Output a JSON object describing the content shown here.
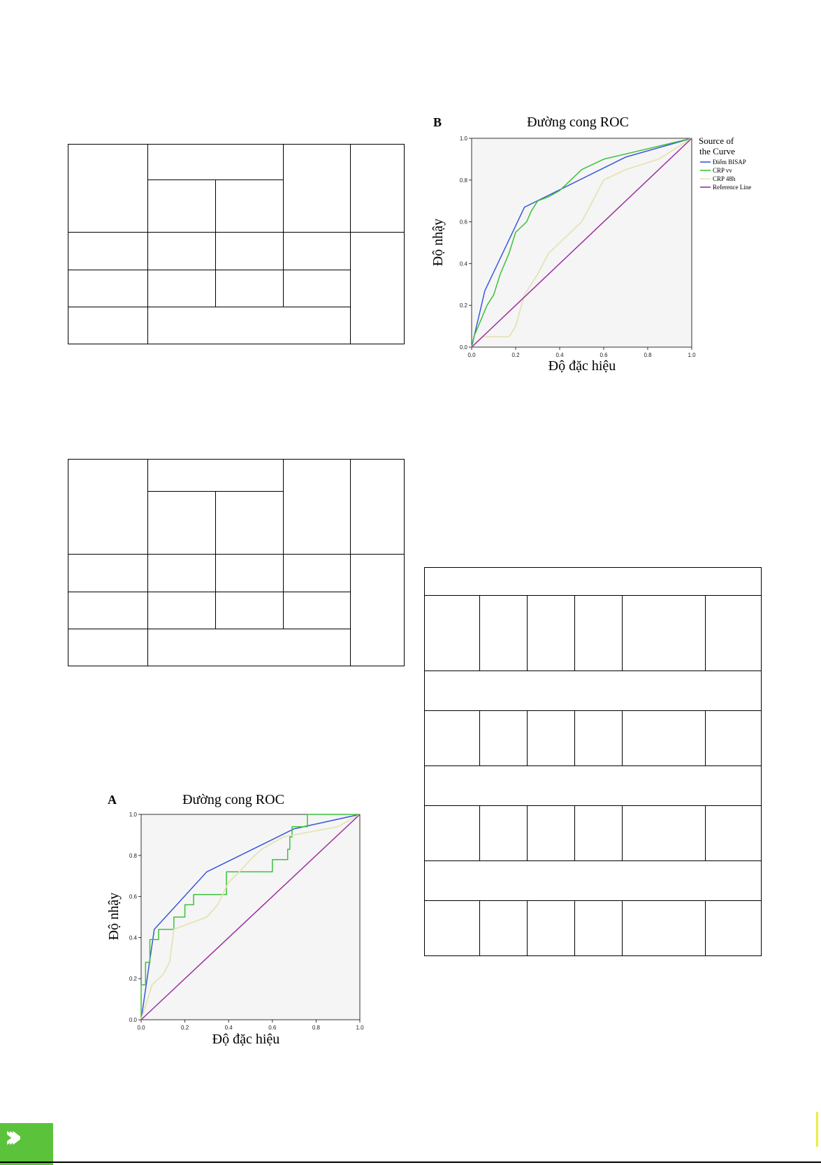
{
  "footer": {
    "chevron_icon": "double-chevron-right-icon",
    "accent_color": "#5bc33b"
  },
  "chart_data": [
    {
      "type": "line",
      "panel": "A",
      "title": "Đường cong ROC",
      "xlabel": "Độ đặc hiệu",
      "ylabel": "Độ nhậy",
      "xlim": [
        0,
        1
      ],
      "ylim": [
        0,
        1
      ],
      "xticks": [
        "0.0",
        "0.2",
        "0.4",
        "0.6",
        "0.8",
        "1.0"
      ],
      "yticks": [
        "0.0",
        "0.2",
        "0.4",
        "0.6",
        "0.8",
        "1.0"
      ],
      "legend": null,
      "series": [
        {
          "color": "#3b58d8",
          "x": [
            0,
            0.06,
            0.3,
            0.7,
            1
          ],
          "y": [
            0,
            0.44,
            0.72,
            0.93,
            1
          ]
        },
        {
          "color": "#3dc13d",
          "x": [
            0,
            0,
            0.02,
            0.02,
            0.04,
            0.04,
            0.08,
            0.08,
            0.15,
            0.15,
            0.2,
            0.2,
            0.24,
            0.24,
            0.39,
            0.39,
            0.6,
            0.6,
            0.67,
            0.67,
            0.68,
            0.68,
            0.69,
            0.69,
            0.71,
            0.71,
            0.76,
            0.76,
            1
          ],
          "y": [
            0,
            0.17,
            0.17,
            0.28,
            0.28,
            0.39,
            0.39,
            0.44,
            0.44,
            0.5,
            0.5,
            0.56,
            0.56,
            0.61,
            0.61,
            0.72,
            0.72,
            0.78,
            0.78,
            0.83,
            0.83,
            0.89,
            0.89,
            0.94,
            0.94,
            0.94,
            0.94,
            1,
            1
          ]
        },
        {
          "color": "#e6e3b6",
          "x": [
            0,
            0.05,
            0.05,
            0.1,
            0.1,
            0.13,
            0.13,
            0.15,
            0.15,
            0.3,
            0.3,
            0.35,
            0.35,
            0.4,
            0.4,
            0.45,
            0.45,
            0.5,
            0.5,
            0.55,
            0.55,
            0.65,
            0.65,
            0.9,
            0.9,
            1
          ],
          "y": [
            0,
            0.17,
            0.17,
            0.22,
            0.22,
            0.28,
            0.28,
            0.44,
            0.44,
            0.5,
            0.5,
            0.56,
            0.56,
            0.67,
            0.67,
            0.72,
            0.72,
            0.78,
            0.78,
            0.83,
            0.83,
            0.89,
            0.89,
            0.94,
            0.94,
            1
          ]
        },
        {
          "color": "#9b2fa0",
          "x": [
            0,
            1
          ],
          "y": [
            0,
            1
          ]
        }
      ]
    },
    {
      "type": "line",
      "panel": "B",
      "title": "Đường cong ROC",
      "xlabel": "Độ đặc hiệu",
      "ylabel": "Độ nhậy",
      "xlim": [
        0,
        1
      ],
      "ylim": [
        0,
        1
      ],
      "xticks": [
        "0.0",
        "0.2",
        "0.4",
        "0.6",
        "0.8",
        "1.0"
      ],
      "yticks": [
        "0.0",
        "0.2",
        "0.4",
        "0.6",
        "0.8",
        "1.0"
      ],
      "legend": {
        "title": [
          "Source of",
          "the Curve"
        ],
        "placement": "right"
      },
      "series": [
        {
          "name": "Điểm BISAP",
          "color": "#3b58d8",
          "x": [
            0,
            0.06,
            0.24,
            0.7,
            1
          ],
          "y": [
            0,
            0.27,
            0.67,
            0.91,
            1
          ]
        },
        {
          "name": "CRP vv",
          "color": "#3dc13d",
          "x": [
            0,
            0.01,
            0.01,
            0.03,
            0.03,
            0.05,
            0.05,
            0.07,
            0.07,
            0.1,
            0.1,
            0.13,
            0.13,
            0.15,
            0.15,
            0.17,
            0.17,
            0.2,
            0.2,
            0.25,
            0.25,
            0.27,
            0.27,
            0.3,
            0.3,
            0.35,
            0.35,
            0.4,
            0.4,
            0.45,
            0.45,
            0.5,
            0.5,
            0.6,
            0.6,
            1
          ],
          "y": [
            0,
            0.05,
            0.05,
            0.1,
            0.1,
            0.15,
            0.15,
            0.2,
            0.2,
            0.25,
            0.25,
            0.35,
            0.35,
            0.4,
            0.4,
            0.45,
            0.45,
            0.55,
            0.55,
            0.6,
            0.6,
            0.65,
            0.65,
            0.7,
            0.7,
            0.72,
            0.72,
            0.75,
            0.75,
            0.8,
            0.8,
            0.85,
            0.85,
            0.9,
            0.9,
            1
          ]
        },
        {
          "name": "CRP 48h",
          "color": "#e6e3b6",
          "x": [
            0,
            0.05,
            0.05,
            0.17,
            0.17,
            0.2,
            0.2,
            0.24,
            0.24,
            0.3,
            0.3,
            0.35,
            0.35,
            0.4,
            0.4,
            0.5,
            0.5,
            0.55,
            0.55,
            0.6,
            0.6,
            0.7,
            0.7,
            0.85,
            0.85,
            1
          ],
          "y": [
            0,
            0.05,
            0.05,
            0.05,
            0.05,
            0.1,
            0.1,
            0.25,
            0.25,
            0.35,
            0.35,
            0.45,
            0.45,
            0.5,
            0.5,
            0.6,
            0.6,
            0.7,
            0.7,
            0.8,
            0.8,
            0.85,
            0.85,
            0.9,
            0.9,
            1
          ]
        },
        {
          "name": "Reference Line",
          "color": "#9b2fa0",
          "x": [
            0,
            1
          ],
          "y": [
            0,
            1
          ]
        }
      ]
    }
  ]
}
